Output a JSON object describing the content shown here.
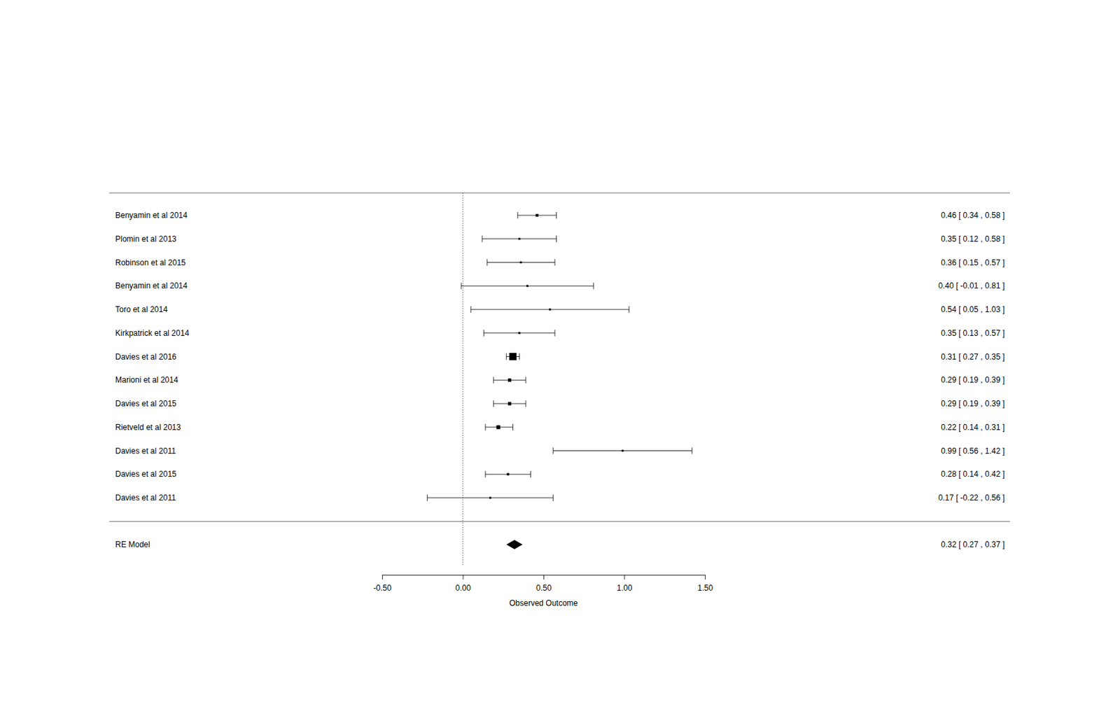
{
  "chart_data": {
    "type": "forest",
    "orientation": "horizontal",
    "categories": [
      "Benyamin et al 2014",
      "Plomin et al 2013",
      "Robinson et al 2015",
      "Benyamin et al 2014",
      "Toro et al 2014",
      "Kirkpatrick et al 2014",
      "Davies et al 2016",
      "Marioni et al 2014",
      "Davies et al 2015",
      "Rietveld et al 2013",
      "Davies et al 2011",
      "Davies et al 2015",
      "Davies et al 2011"
    ],
    "values": [
      0.46,
      0.35,
      0.36,
      0.4,
      0.54,
      0.35,
      0.31,
      0.29,
      0.29,
      0.22,
      0.99,
      0.28,
      0.17
    ],
    "ci_lower": [
      0.34,
      0.12,
      0.15,
      -0.01,
      0.05,
      0.13,
      0.27,
      0.19,
      0.19,
      0.14,
      0.56,
      0.14,
      -0.22
    ],
    "ci_upper": [
      0.58,
      0.58,
      0.57,
      0.81,
      1.03,
      0.57,
      0.35,
      0.39,
      0.39,
      0.31,
      1.42,
      0.42,
      0.56
    ],
    "value_labels": [
      "0.46 [ 0.34 , 0.58 ]",
      "0.35 [ 0.12 , 0.58 ]",
      "0.36 [ 0.15 , 0.57 ]",
      "0.40 [ -0.01 , 0.81 ]",
      "0.54 [ 0.05 , 1.03 ]",
      "0.35 [ 0.13 , 0.57 ]",
      "0.31 [ 0.27 , 0.35 ]",
      "0.29 [ 0.19 , 0.39 ]",
      "0.29 [ 0.19 , 0.39 ]",
      "0.22 [ 0.14 , 0.31 ]",
      "0.99 [ 0.56 , 1.42 ]",
      "0.28 [ 0.14 , 0.42 ]",
      "0.17 [ -0.22 , 0.56 ]"
    ],
    "summary": {
      "label": "RE Model",
      "value": 0.32,
      "ci_lower": 0.27,
      "ci_upper": 0.37,
      "value_label": "0.32 [ 0.27 , 0.37 ]"
    },
    "xlabel": "Observed Outcome",
    "xlim": [
      -0.5,
      1.5
    ],
    "xticks": [
      {
        "value": -0.5,
        "label": "-0.50"
      },
      {
        "value": 0,
        "label": "0.00"
      },
      {
        "value": 0.5,
        "label": "0.50"
      },
      {
        "value": 1,
        "label": "1.00"
      },
      {
        "value": 1.5,
        "label": "1.50"
      }
    ],
    "reference_line": 0,
    "color": "#000000"
  }
}
